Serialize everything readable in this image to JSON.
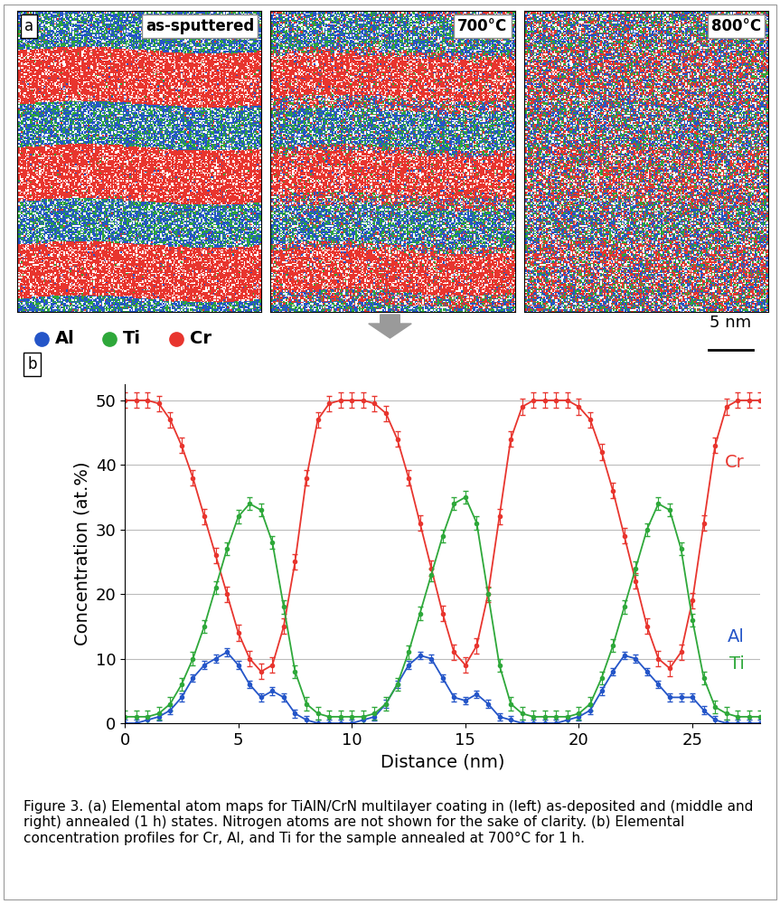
{
  "panel_a": {
    "label": "a",
    "maps": [
      {
        "title": "as-sputtered"
      },
      {
        "title": "700°C"
      },
      {
        "title": "800°C"
      }
    ],
    "legend": [
      {
        "name": "Al",
        "color": "#2455c8"
      },
      {
        "name": "Ti",
        "color": "#2ea83a"
      },
      {
        "name": "Cr",
        "color": "#e8352e"
      }
    ],
    "scale_bar": "5 nm"
  },
  "panel_b_label": "b",
  "chart_data": {
    "type": "line",
    "x_label": "Distance (nm)",
    "y_label": "Concentration (at.%)",
    "x": [
      0,
      0.5,
      1,
      1.5,
      2,
      2.5,
      3,
      3.5,
      4,
      4.5,
      5,
      5.5,
      6,
      6.5,
      7,
      7.5,
      8,
      8.5,
      9,
      9.5,
      10,
      10.5,
      11,
      11.5,
      12,
      12.5,
      13,
      13.5,
      14,
      14.5,
      15,
      15.5,
      16,
      16.5,
      17,
      17.5,
      18,
      18.5,
      19,
      19.5,
      20,
      20.5,
      21,
      21.5,
      22,
      22.5,
      23,
      23.5,
      24,
      24.5,
      25,
      25.5,
      26,
      26.5,
      27,
      27.5,
      28
    ],
    "series": [
      {
        "name": "Cr",
        "color": "#e8352e",
        "marker": "o",
        "line_style": "solid",
        "error": 1.2,
        "values": [
          50,
          50,
          50,
          49.5,
          47,
          43,
          38,
          32,
          26,
          20,
          14,
          10,
          8,
          9,
          15,
          25,
          38,
          47,
          49.5,
          50,
          50,
          50,
          49.5,
          48,
          44,
          38,
          31,
          24,
          17,
          11,
          9,
          12,
          20,
          32,
          44,
          49,
          50,
          50,
          50,
          50,
          49,
          47,
          42,
          36,
          29,
          22,
          15,
          10,
          8.5,
          11,
          19,
          31,
          43,
          49,
          50,
          50,
          50
        ]
      },
      {
        "name": "Al",
        "color": "#2455c8",
        "marker": "o",
        "line_style": "solid",
        "error": 0.6,
        "values": [
          0,
          0,
          0.5,
          1,
          2,
          4,
          7,
          9,
          10,
          11,
          9,
          6,
          4,
          5,
          4,
          1.5,
          0.5,
          0,
          0,
          0,
          0,
          0.5,
          1,
          3,
          6,
          9,
          10.5,
          10,
          7,
          4,
          3.5,
          4.5,
          3,
          1,
          0.5,
          0,
          0,
          0,
          0,
          0.5,
          1,
          2,
          5,
          8,
          10.5,
          10,
          8,
          6,
          4,
          4,
          4,
          2,
          0.5,
          0,
          0,
          0,
          0
        ]
      },
      {
        "name": "Ti",
        "color": "#2ea83a",
        "marker": "o",
        "line_style": "solid",
        "error": 1.0,
        "values": [
          1,
          1,
          1,
          1.5,
          3,
          6,
          10,
          15,
          21,
          27,
          32,
          34,
          33,
          28,
          18,
          8,
          3,
          1.5,
          1,
          1,
          1,
          1,
          1.5,
          3,
          6,
          11,
          17,
          23,
          29,
          34,
          35,
          31,
          20,
          9,
          3,
          1.5,
          1,
          1,
          1,
          1,
          1.5,
          3,
          7,
          12,
          18,
          24,
          30,
          34,
          33,
          27,
          16,
          7,
          2.5,
          1.5,
          1,
          1,
          1
        ]
      }
    ],
    "xlim": [
      0,
      28
    ],
    "xticks": [
      0,
      5,
      10,
      15,
      20,
      25
    ],
    "ylim": [
      0,
      52.5
    ],
    "yticks": [
      0,
      10,
      20,
      30,
      40,
      50
    ],
    "grid": true
  },
  "caption": "Figure 3. (a) Elemental atom maps for TiAlN/CrN multilayer coating in (left) as-deposited and (middle and right) annealed (1 h) states. Nitrogen atoms are not shown for the sake of clarity. (b) Elemental concentration profiles for Cr, Al, and Ti for the sample annealed at 700°C for 1 h."
}
